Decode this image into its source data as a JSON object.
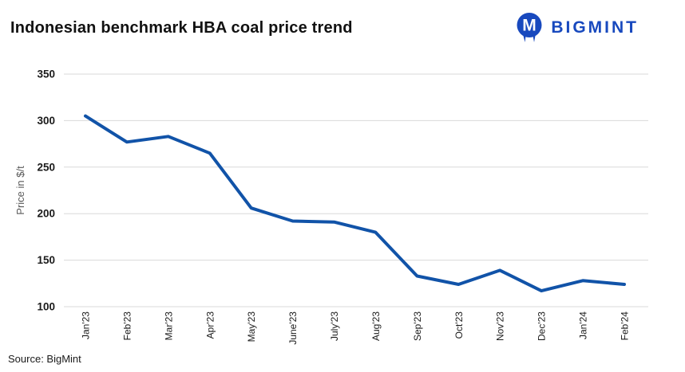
{
  "header": {
    "title": "Indonesian benchmark HBA coal price trend",
    "logo": {
      "text": "BIGMINT",
      "color": "#1849BE"
    }
  },
  "footer": {
    "source": "Source: BigMint"
  },
  "chart_data": {
    "type": "line",
    "title": "Indonesian benchmark HBA coal price trend",
    "series_name": "HBA coal price",
    "categories": [
      "Jan'23",
      "Feb'23",
      "Mar'23",
      "Apr'23",
      "May'23",
      "June'23",
      "July'23",
      "Aug'23",
      "Sep'23",
      "Oct'23",
      "Nov'23",
      "Dec'23",
      "Jan'24",
      "Feb'24"
    ],
    "values": [
      305,
      277,
      283,
      265,
      206,
      192,
      191,
      180,
      133,
      124,
      139,
      117,
      128,
      124
    ],
    "xlabel": "",
    "ylabel": "Price in $/t",
    "ylim": [
      100,
      350
    ],
    "yticks": [
      100,
      150,
      200,
      250,
      300,
      350
    ],
    "grid": true,
    "legend": "none",
    "line_color": "#1153A8",
    "grid_color": "#d9d9d9",
    "tick_label_color": "#1a1a1a",
    "axis_label_color": "#595959"
  }
}
